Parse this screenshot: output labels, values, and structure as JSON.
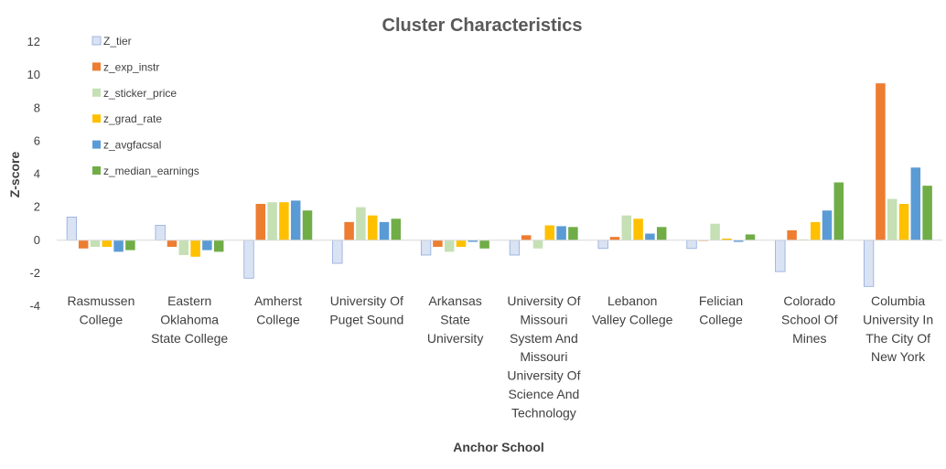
{
  "chart_data": {
    "type": "bar",
    "title": "Cluster Characteristics",
    "xlabel": "Anchor School",
    "ylabel": "Z-score",
    "ylim": [
      -4,
      12
    ],
    "yticks": [
      -4,
      -2,
      0,
      2,
      4,
      6,
      8,
      10,
      12
    ],
    "grid": false,
    "legend_position": "top-left",
    "categories": [
      [
        "Rasmussen",
        "College"
      ],
      [
        "Eastern",
        "Oklahoma",
        "State College"
      ],
      [
        "Amherst",
        "College"
      ],
      [
        "University Of",
        "Puget Sound"
      ],
      [
        "Arkansas",
        "State",
        "University"
      ],
      [
        "University Of",
        "Missouri",
        "System And",
        "Missouri",
        "University Of",
        "Science And",
        "Technology"
      ],
      [
        "Lebanon",
        "Valley College"
      ],
      [
        "Felician",
        "College"
      ],
      [
        "Colorado",
        "School Of",
        "Mines"
      ],
      [
        "Columbia",
        "University In",
        "The City Of",
        "New York"
      ]
    ],
    "series": [
      {
        "name": "Z_tier",
        "color": "#dae3f3",
        "stroke": "#8faadc",
        "values": [
          1.4,
          0.9,
          -2.3,
          -1.4,
          -0.9,
          -0.9,
          -0.5,
          -0.5,
          -1.9,
          -2.8
        ]
      },
      {
        "name": "z_exp_instr",
        "color": "#ed7d31",
        "values": [
          -0.5,
          -0.4,
          2.2,
          1.1,
          -0.4,
          0.3,
          0.2,
          0.0,
          0.6,
          9.5
        ]
      },
      {
        "name": "z_sticker_price",
        "color": "#c5e0b4",
        "values": [
          -0.4,
          -0.9,
          2.3,
          2.0,
          -0.7,
          -0.5,
          1.5,
          1.0,
          0.05,
          2.5
        ]
      },
      {
        "name": "z_grad_rate",
        "color": "#ffc000",
        "values": [
          -0.4,
          -1.0,
          2.3,
          1.5,
          -0.4,
          0.9,
          1.3,
          0.1,
          1.1,
          2.2
        ]
      },
      {
        "name": "z_avgfacsal",
        "color": "#5b9bd5",
        "values": [
          -0.7,
          -0.6,
          2.4,
          1.1,
          -0.1,
          0.85,
          0.4,
          -0.1,
          1.8,
          4.4
        ]
      },
      {
        "name": "z_median_earnings",
        "color": "#70ad47",
        "values": [
          -0.6,
          -0.7,
          1.8,
          1.3,
          -0.5,
          0.8,
          0.8,
          0.35,
          3.5,
          3.3
        ]
      }
    ]
  }
}
